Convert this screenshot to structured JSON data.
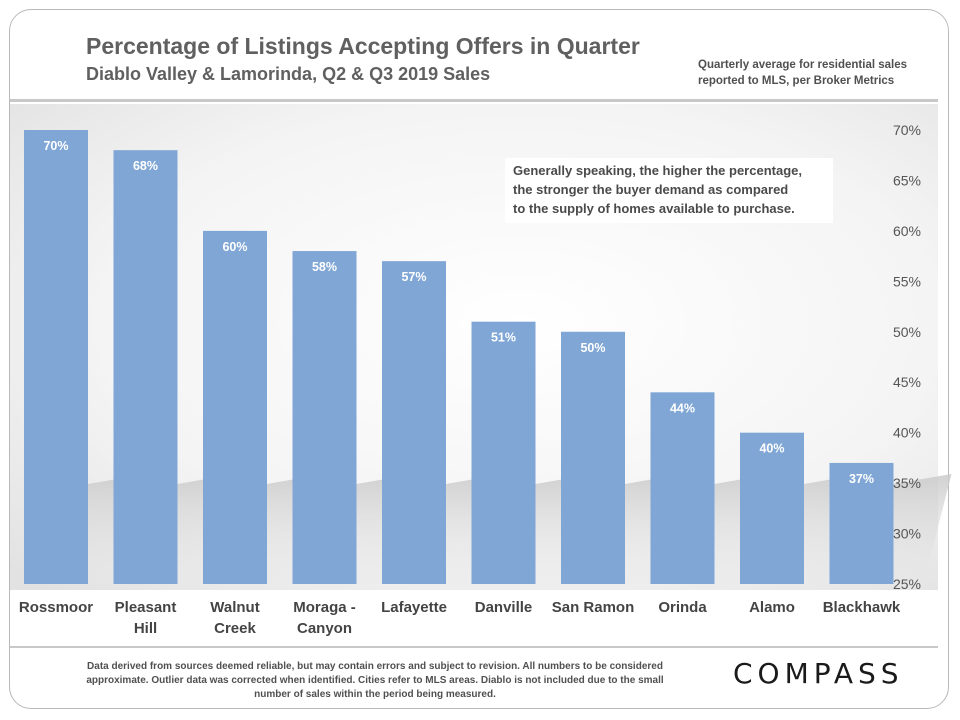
{
  "header": {
    "title": "Percentage of Listings Accepting Offers in Quarter",
    "subtitle": "Diablo Valley & Lamorinda,  Q2 & Q3 2019 Sales",
    "note_line1": "Quarterly average for residential  sales",
    "note_line2": "reported to MLS, per Broker Metrics"
  },
  "callout": {
    "line1": "Generally speaking, the higher the percentage,",
    "line2": "the stronger the buyer demand as compared",
    "line3": "to the supply of homes available to purchase."
  },
  "footer": {
    "line1": "Data derived from sources deemed reliable, but may contain errors and subject to revision. All numbers to be considered",
    "line2": "approximate. Outlier data was corrected when identified. Cities refer to MLS areas. Diablo is not included due to the small",
    "line3": "number of sales within the period being measured.",
    "logo": "COMPASS"
  },
  "colors": {
    "bar": "#7fa6d5",
    "bar_label": "#ffffff",
    "axis_text": "#555555"
  },
  "chart_data": {
    "type": "bar",
    "title": "Percentage of Listings Accepting Offers in Quarter",
    "subtitle": "Diablo Valley & Lamorinda,  Q2 & Q3 2019 Sales",
    "xlabel": "",
    "ylabel": "",
    "ylim": [
      25,
      70
    ],
    "y_axis_side": "right",
    "yticks": [
      25,
      30,
      35,
      40,
      45,
      50,
      55,
      60,
      65,
      70
    ],
    "ytick_labels": [
      "25%",
      "30%",
      "35%",
      "40%",
      "45%",
      "50%",
      "55%",
      "60%",
      "65%",
      "70%"
    ],
    "categories": [
      "Rossmoor",
      "Pleasant Hill",
      "Walnut Creek",
      "Moraga - Canyon",
      "Lafayette",
      "Danville",
      "San Ramon",
      "Orinda",
      "Alamo",
      "Blackhawk"
    ],
    "category_lines": [
      [
        "Rossmoor"
      ],
      [
        "Pleasant",
        "Hill"
      ],
      [
        "Walnut",
        "Creek"
      ],
      [
        "Moraga -",
        "Canyon"
      ],
      [
        "Lafayette"
      ],
      [
        "Danville"
      ],
      [
        "San Ramon"
      ],
      [
        "Orinda"
      ],
      [
        "Alamo"
      ],
      [
        "Blackhawk"
      ]
    ],
    "values": [
      70,
      68,
      60,
      58,
      57,
      51,
      50,
      44,
      40,
      37
    ],
    "value_labels": [
      "70%",
      "68%",
      "60%",
      "58%",
      "57%",
      "51%",
      "50%",
      "44%",
      "40%",
      "37%"
    ]
  }
}
